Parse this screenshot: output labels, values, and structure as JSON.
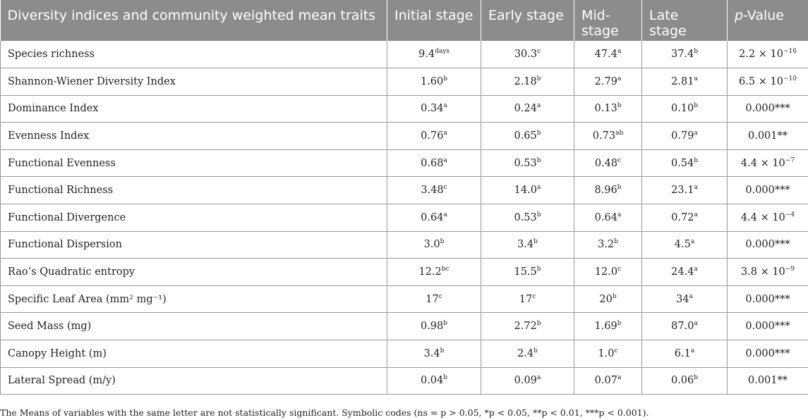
{
  "headers": {
    "h0": "Diversity indices and community weighted mean traits",
    "h1": "Initial stage",
    "h2": "Early stage",
    "h3": "Mid-stage",
    "h4": "Late stage",
    "h5_italic": "p",
    "h5_rest": "-Value"
  },
  "rows": [
    {
      "label": "Species richness",
      "v1": "9.4",
      "s1": "days",
      "v2": "30.3",
      "s2": "c",
      "v3": "47.4",
      "s3": "a",
      "v4": "37.4",
      "s4": "b",
      "p": "2.2 × 10",
      "ps": "−16"
    },
    {
      "label": "Shannon-Wiener Diversity Index",
      "v1": "1.60",
      "s1": "b",
      "v2": "2.18",
      "s2": "b",
      "v3": "2.79",
      "s3": "a",
      "v4": "2.81",
      "s4": "a",
      "p": "6.5 × 10",
      "ps": "−10"
    },
    {
      "label": "Dominance Index",
      "v1": "0.34",
      "s1": "a",
      "v2": "0.24",
      "s2": "a",
      "v3": "0.13",
      "s3": "b",
      "v4": "0.10",
      "s4": "b",
      "p": "0.000***",
      "ps": ""
    },
    {
      "label": "Evenness Index",
      "v1": "0.76",
      "s1": "a",
      "v2": "0.65",
      "s2": "b",
      "v3": "0.73",
      "s3": "ab",
      "v4": "0.79",
      "s4": "a",
      "p": "0.001**",
      "ps": ""
    },
    {
      "label": "Functional Evenness",
      "v1": "0.68",
      "s1": "a",
      "v2": "0.53",
      "s2": "b",
      "v3": "0.48",
      "s3": "c",
      "v4": "0.54",
      "s4": "b",
      "p": "4.4 × 10",
      "ps": "−7"
    },
    {
      "label": "Functional Richness",
      "v1": "3.48",
      "s1": "c",
      "v2": "14.0",
      "s2": "a",
      "v3": "8.96",
      "s3": "b",
      "v4": "23.1",
      "s4": "a",
      "p": "0.000***",
      "ps": ""
    },
    {
      "label": "Functional Divergence",
      "v1": "0.64",
      "s1": "a",
      "v2": "0.53",
      "s2": "b",
      "v3": "0.64",
      "s3": "a",
      "v4": "0.72",
      "s4": "a",
      "p": "4.4 × 10",
      "ps": "−4"
    },
    {
      "label": "Functional Dispersion",
      "v1": "3.0",
      "s1": "b",
      "v2": "3.4",
      "s2": "b",
      "v3": "3.2",
      "s3": "b",
      "v4": "4.5",
      "s4": "a",
      "p": "0.000***",
      "ps": ""
    },
    {
      "label": "Rao’s Quadratic entropy",
      "v1": "12.2",
      "s1": "bc",
      "v2": "15.5",
      "s2": "b",
      "v3": "12.0",
      "s3": "c",
      "v4": "24.4",
      "s4": "a",
      "p": "3.8 × 10",
      "ps": "−9"
    },
    {
      "label": "Specific Leaf Area (mm² mg⁻¹)",
      "v1": "17",
      "s1": "c",
      "v2": "17",
      "s2": "c",
      "v3": "20",
      "s3": "b",
      "v4": "34",
      "s4": "a",
      "p": "0.000***",
      "ps": ""
    },
    {
      "label": "Seed Mass (mg)",
      "v1": "0.98",
      "s1": "b",
      "v2": "2.72",
      "s2": "b",
      "v3": "1.69",
      "s3": "b",
      "v4": "87.0",
      "s4": "a",
      "p": "0.000***",
      "ps": ""
    },
    {
      "label": "Canopy Height (m)",
      "v1": "3.4",
      "s1": "b",
      "v2": "2.4",
      "s2": "b",
      "v3": "1.0",
      "s3": "c",
      "v4": "6.1",
      "s4": "a",
      "p": "0.000***",
      "ps": ""
    },
    {
      "label": "Lateral Spread (m/y)",
      "v1": "0.04",
      "s1": "b",
      "v2": "0.09",
      "s2": "a",
      "v3": "0.07",
      "s3": "a",
      "v4": "0.06",
      "s4": "b",
      "p": "0.001**",
      "ps": ""
    }
  ],
  "footnote": "The Means of variables with the same letter are not statistically significant. Symbolic codes (ns = p > 0.05, *p < 0.05, **p < 0.01, ***p < 0.001)."
}
